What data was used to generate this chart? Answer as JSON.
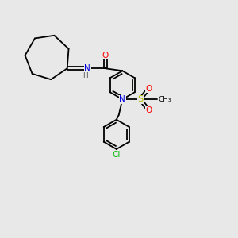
{
  "bg_color": "#e8e8e8",
  "figsize": [
    3.0,
    3.0
  ],
  "dpi": 100,
  "bond_color": "#000000",
  "bond_width": 1.3,
  "colors": {
    "N": "#0000dd",
    "O": "#ff0000",
    "S": "#bbbb00",
    "Cl": "#00bb00",
    "C": "#000000",
    "H": "#555555"
  },
  "font_size": 7.5
}
